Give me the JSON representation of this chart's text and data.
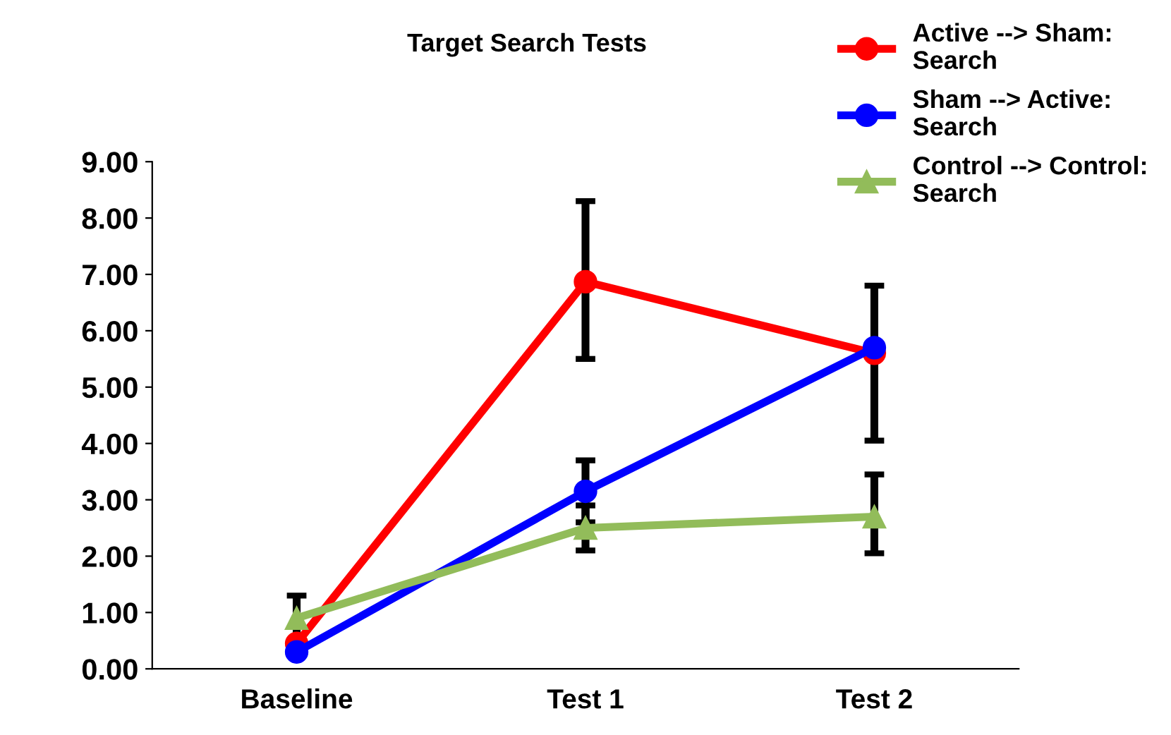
{
  "chart_data": {
    "type": "line",
    "title": "Target Search Tests",
    "categories": [
      "Baseline",
      "Test 1",
      "Test 2"
    ],
    "series": [
      {
        "name": "Active --> Sham:\nSearch",
        "color": "#ff0000",
        "marker": "circle",
        "values": [
          0.45,
          6.87,
          5.6
        ],
        "errors": [
          null,
          [
            5.5,
            8.3
          ],
          null
        ]
      },
      {
        "name": "Sham --> Active:\nSearch",
        "color": "#0000ff",
        "marker": "circle",
        "values": [
          0.3,
          3.15,
          5.7
        ],
        "errors": [
          null,
          [
            2.6,
            3.7
          ],
          [
            4.05,
            6.8
          ]
        ]
      },
      {
        "name": "Control --> Control:\nSearch",
        "color": "#92bc5a",
        "marker": "triangle",
        "values": [
          0.9,
          2.5,
          2.7
        ],
        "errors": [
          [
            0.5,
            1.3
          ],
          [
            2.1,
            2.9
          ],
          [
            2.05,
            3.45
          ]
        ]
      }
    ],
    "ylim": [
      0,
      9
    ],
    "yticks": [
      {
        "value": 0,
        "label": "0.00"
      },
      {
        "value": 1,
        "label": "1.00"
      },
      {
        "value": 2,
        "label": "2.00"
      },
      {
        "value": 3,
        "label": "3.00"
      },
      {
        "value": 4,
        "label": "4.00"
      },
      {
        "value": 5,
        "label": "5.00"
      },
      {
        "value": 6,
        "label": "6.00"
      },
      {
        "value": 7,
        "label": "7.00"
      },
      {
        "value": 8,
        "label": "8.00"
      },
      {
        "value": 9,
        "label": "9.00"
      }
    ],
    "grid": false,
    "legend": "top right",
    "line_style": "solid"
  }
}
